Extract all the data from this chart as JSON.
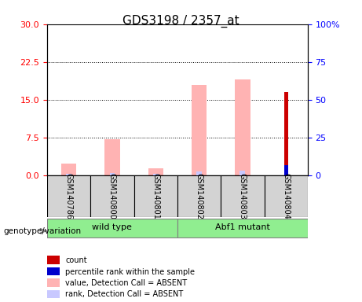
{
  "title": "GDS3198 / 2357_at",
  "samples": [
    "GSM140786",
    "GSM140800",
    "GSM140801",
    "GSM140802",
    "GSM140803",
    "GSM140804"
  ],
  "groups": {
    "wild type": [
      0,
      1,
      2
    ],
    "Abf1 mutant": [
      3,
      4,
      5
    ]
  },
  "value_absent": [
    2.3,
    7.2,
    1.3,
    18.0,
    19.0,
    0.0
  ],
  "rank_absent": [
    1.0,
    1.5,
    0.8,
    2.5,
    2.8,
    0.0
  ],
  "count": [
    0.0,
    0.0,
    0.0,
    0.0,
    0.0,
    16.5
  ],
  "percentile_rank": [
    0.0,
    0.0,
    0.0,
    0.0,
    0.0,
    6.5
  ],
  "left_ylim": [
    0,
    30
  ],
  "right_ylim": [
    0,
    100
  ],
  "left_yticks": [
    0,
    7.5,
    15,
    22.5,
    30
  ],
  "right_yticks": [
    0,
    25,
    50,
    75,
    100
  ],
  "right_yticklabels": [
    "0",
    "25",
    "50",
    "75",
    "100%"
  ],
  "color_count": "#cc0000",
  "color_percentile": "#0000cc",
  "color_value_absent": "#ffb3b3",
  "color_rank_absent": "#c8c8ff",
  "color_group1": "#90ee90",
  "color_group2": "#90ee90",
  "color_sample_bg": "#d3d3d3",
  "legend_items": [
    {
      "label": "count",
      "color": "#cc0000"
    },
    {
      "label": "percentile rank within the sample",
      "color": "#0000cc"
    },
    {
      "label": "value, Detection Call = ABSENT",
      "color": "#ffb3b3"
    },
    {
      "label": "rank, Detection Call = ABSENT",
      "color": "#c8c8ff"
    }
  ]
}
